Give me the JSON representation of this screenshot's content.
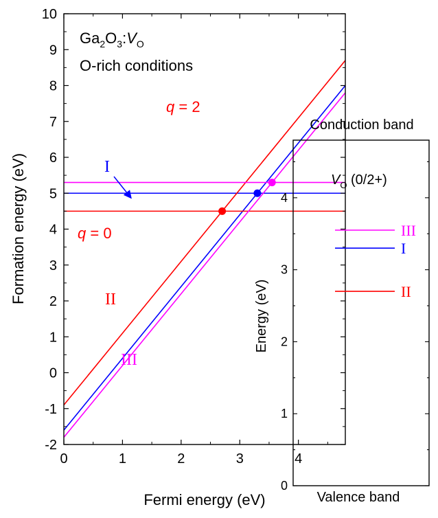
{
  "chart_data": [
    {
      "type": "line",
      "xlabel": "Fermi energy (eV)",
      "ylabel": "Formation energy (eV)",
      "xlim": [
        0,
        4.8
      ],
      "ylim": [
        -2,
        10
      ],
      "xticks": [
        "0",
        "1",
        "2",
        "3",
        "4"
      ],
      "yticks": [
        "-2",
        "-1",
        "0",
        "1",
        "2",
        "3",
        "4",
        "5",
        "6",
        "7",
        "8",
        "9",
        "10"
      ],
      "annotation_material": {
        "main": "Ga",
        "sub1": "2",
        "mid": "O",
        "sub2": "3",
        "sep": ":",
        "defect": "V",
        "defect_sub": "O"
      },
      "annotation_conditions": "O-rich conditions",
      "q0_label": {
        "q": "q",
        "rest": " = 0"
      },
      "q2_label": {
        "q": "q",
        "rest": " = 2"
      },
      "series": [
        {
          "name": "I",
          "color": "#0000ff",
          "neutral": 5.0,
          "charged_intercept": -1.6,
          "slope": 2,
          "transition": [
            3.3,
            5.0
          ]
        },
        {
          "name": "II",
          "color": "#ff0000",
          "neutral": 4.5,
          "charged_intercept": -0.9,
          "slope": 2,
          "transition": [
            2.7,
            4.5
          ]
        },
        {
          "name": "III",
          "color": "#ff00ff",
          "neutral": 5.3,
          "charged_intercept": -1.8,
          "slope": 2,
          "transition": [
            3.55,
            5.3
          ]
        }
      ]
    },
    {
      "type": "levels",
      "ylabel": "Energy (eV)",
      "ylim": [
        0,
        4.8
      ],
      "yticks": [
        "0",
        "1",
        "2",
        "3",
        "4"
      ],
      "top_label": "Conduction band",
      "bottom_label": "Valence band",
      "title": {
        "v": "V",
        "sub": "O",
        "rest": " (0/2+)"
      },
      "levels": [
        {
          "name": "III",
          "color": "#ff00ff",
          "energy": 3.55
        },
        {
          "name": "I",
          "color": "#0000ff",
          "energy": 3.3
        },
        {
          "name": "II",
          "color": "#ff0000",
          "energy": 2.7
        }
      ]
    }
  ]
}
